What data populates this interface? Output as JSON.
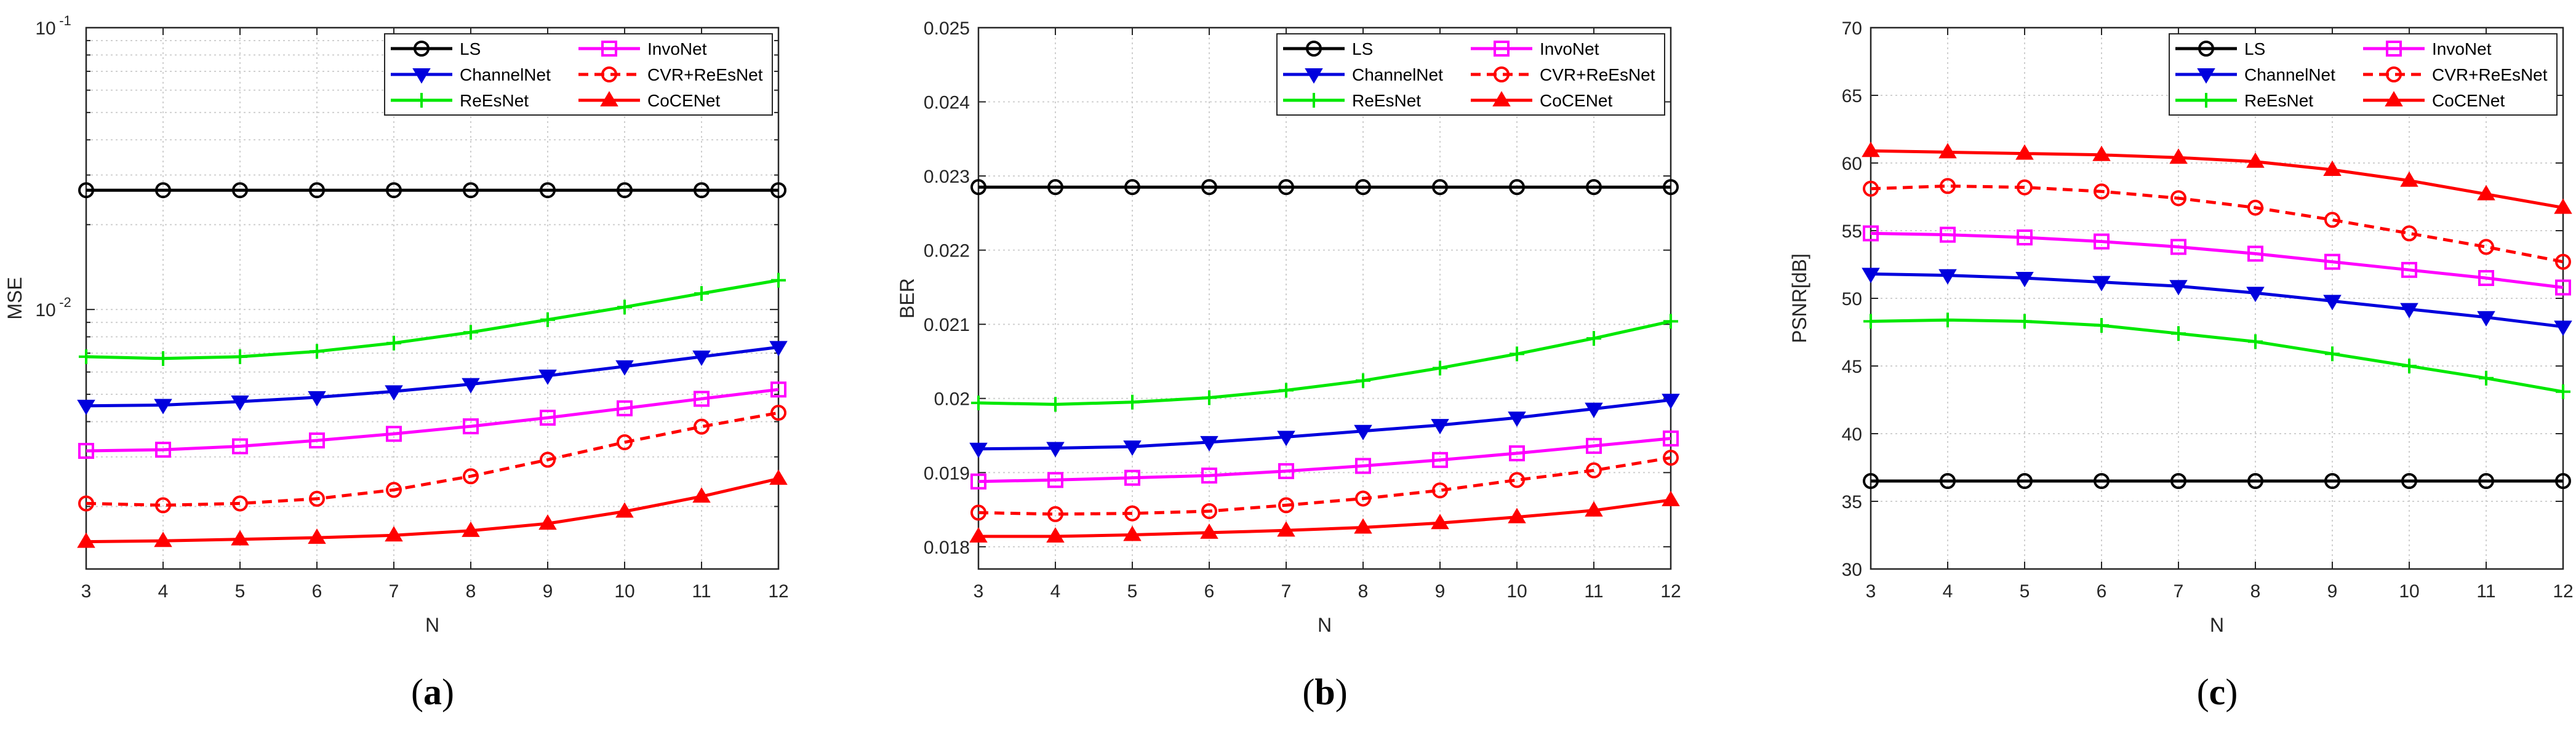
{
  "figure": {
    "series_styles": [
      {
        "name": "LS",
        "color": "#000000",
        "marker": "circle",
        "dash": "solid"
      },
      {
        "name": "InvoNet",
        "color": "#ff00ff",
        "marker": "square",
        "dash": "solid"
      },
      {
        "name": "ChannelNet",
        "color": "#0000dd",
        "marker": "triangle-down",
        "dash": "solid"
      },
      {
        "name": "CVR+ReEsNet",
        "color": "#ff0000",
        "marker": "circle",
        "dash": "dashed"
      },
      {
        "name": "ReEsNet",
        "color": "#00e800",
        "marker": "plus",
        "dash": "solid"
      },
      {
        "name": "CoCENet",
        "color": "#ff0000",
        "marker": "triangle-up",
        "dash": "solid"
      }
    ],
    "legend_position": "top-right"
  },
  "chart_data": [
    {
      "type": "line",
      "panel_label": "a",
      "title": "",
      "xlabel": "N",
      "ylabel": "MSE",
      "yscale": "log",
      "x": [
        3,
        4,
        5,
        6,
        7,
        8,
        9,
        10,
        11,
        12
      ],
      "xlim": [
        3,
        12
      ],
      "xticks": [
        "3",
        "4",
        "5",
        "6",
        "7",
        "8",
        "9",
        "10",
        "11",
        "12"
      ],
      "ylim": [
        0.0012,
        0.1
      ],
      "yticks": [
        {
          "value": 0.01,
          "base": "10",
          "exp": "-2"
        },
        {
          "value": 0.1,
          "base": "10",
          "exp": "-1"
        }
      ],
      "grid": true,
      "series": [
        {
          "name": "LS",
          "values": [
            0.0265,
            0.0265,
            0.0265,
            0.0265,
            0.0265,
            0.0265,
            0.0265,
            0.0265,
            0.0265,
            0.0265
          ]
        },
        {
          "name": "InvoNet",
          "values": [
            0.00315,
            0.00318,
            0.00327,
            0.00343,
            0.00362,
            0.00385,
            0.00413,
            0.00446,
            0.00482,
            0.0052
          ]
        },
        {
          "name": "ChannelNet",
          "values": [
            0.00455,
            0.00458,
            0.00471,
            0.00488,
            0.00512,
            0.00543,
            0.00582,
            0.00628,
            0.0068,
            0.00735
          ]
        },
        {
          "name": "CVR+ReEsNet",
          "values": [
            0.00205,
            0.00202,
            0.00205,
            0.00213,
            0.00229,
            0.00256,
            0.00293,
            0.00338,
            0.00384,
            0.0043
          ]
        },
        {
          "name": "ReEsNet",
          "values": [
            0.0068,
            0.0067,
            0.0068,
            0.0071,
            0.0076,
            0.0083,
            0.0092,
            0.0102,
            0.0114,
            0.0127
          ]
        },
        {
          "name": "CoCENet",
          "values": [
            0.0015,
            0.00151,
            0.00153,
            0.00155,
            0.00158,
            0.00164,
            0.00174,
            0.00192,
            0.00217,
            0.00251
          ]
        }
      ]
    },
    {
      "type": "line",
      "panel_label": "b",
      "title": "",
      "xlabel": "N",
      "ylabel": "BER",
      "yscale": "linear",
      "x": [
        3,
        4,
        5,
        6,
        7,
        8,
        9,
        10,
        11,
        12
      ],
      "xlim": [
        3,
        12
      ],
      "xticks": [
        "3",
        "4",
        "5",
        "6",
        "7",
        "8",
        "9",
        "10",
        "11",
        "12"
      ],
      "ylim": [
        0.0177,
        0.025
      ],
      "yticks": [
        "0.018",
        "0.019",
        "0.02",
        "0.021",
        "0.022",
        "0.023",
        "0.024",
        "0.025"
      ],
      "grid": true,
      "series": [
        {
          "name": "LS",
          "values": [
            0.02285,
            0.02285,
            0.02285,
            0.02285,
            0.02285,
            0.02285,
            0.02285,
            0.02285,
            0.02285,
            0.02285
          ]
        },
        {
          "name": "InvoNet",
          "values": [
            0.01888,
            0.0189,
            0.01893,
            0.01896,
            0.01902,
            0.01909,
            0.01917,
            0.01926,
            0.01936,
            0.01946
          ]
        },
        {
          "name": "ChannelNet",
          "values": [
            0.01932,
            0.01933,
            0.01935,
            0.01941,
            0.01948,
            0.01956,
            0.01964,
            0.01974,
            0.01986,
            0.01998
          ]
        },
        {
          "name": "CVR+ReEsNet",
          "values": [
            0.01846,
            0.01844,
            0.01845,
            0.01848,
            0.01856,
            0.01865,
            0.01876,
            0.0189,
            0.01903,
            0.0192
          ]
        },
        {
          "name": "ReEsNet",
          "values": [
            0.01994,
            0.01992,
            0.01995,
            0.02001,
            0.02011,
            0.02024,
            0.02041,
            0.0206,
            0.02081,
            0.02104
          ]
        },
        {
          "name": "CoCENet",
          "values": [
            0.01814,
            0.01814,
            0.01816,
            0.01819,
            0.01822,
            0.01826,
            0.01832,
            0.0184,
            0.01849,
            0.01863
          ]
        }
      ]
    },
    {
      "type": "line",
      "panel_label": "c",
      "title": "",
      "xlabel": "N",
      "ylabel": "PSNR[dB]",
      "yscale": "linear",
      "x": [
        3,
        4,
        5,
        6,
        7,
        8,
        9,
        10,
        11,
        12
      ],
      "xlim": [
        3,
        12
      ],
      "xticks": [
        "3",
        "4",
        "5",
        "6",
        "7",
        "8",
        "9",
        "10",
        "11",
        "12"
      ],
      "ylim": [
        30,
        70
      ],
      "yticks": [
        "30",
        "35",
        "40",
        "45",
        "50",
        "55",
        "60",
        "65",
        "70"
      ],
      "grid": true,
      "series": [
        {
          "name": "LS",
          "values": [
            36.5,
            36.5,
            36.5,
            36.5,
            36.5,
            36.5,
            36.5,
            36.5,
            36.5,
            36.5
          ]
        },
        {
          "name": "InvoNet",
          "values": [
            54.8,
            54.7,
            54.5,
            54.2,
            53.8,
            53.3,
            52.7,
            52.1,
            51.5,
            50.8
          ]
        },
        {
          "name": "ChannelNet",
          "values": [
            51.8,
            51.7,
            51.5,
            51.2,
            50.9,
            50.4,
            49.8,
            49.2,
            48.6,
            47.9
          ]
        },
        {
          "name": "CVR+ReEsNet",
          "values": [
            58.1,
            58.3,
            58.2,
            57.9,
            57.4,
            56.7,
            55.8,
            54.8,
            53.8,
            52.7
          ]
        },
        {
          "name": "ReEsNet",
          "values": [
            48.3,
            48.4,
            48.3,
            48.0,
            47.4,
            46.8,
            45.9,
            45.0,
            44.1,
            43.1
          ]
        },
        {
          "name": "CoCENet",
          "values": [
            60.9,
            60.8,
            60.7,
            60.6,
            60.4,
            60.1,
            59.5,
            58.7,
            57.7,
            56.7
          ]
        }
      ]
    }
  ]
}
